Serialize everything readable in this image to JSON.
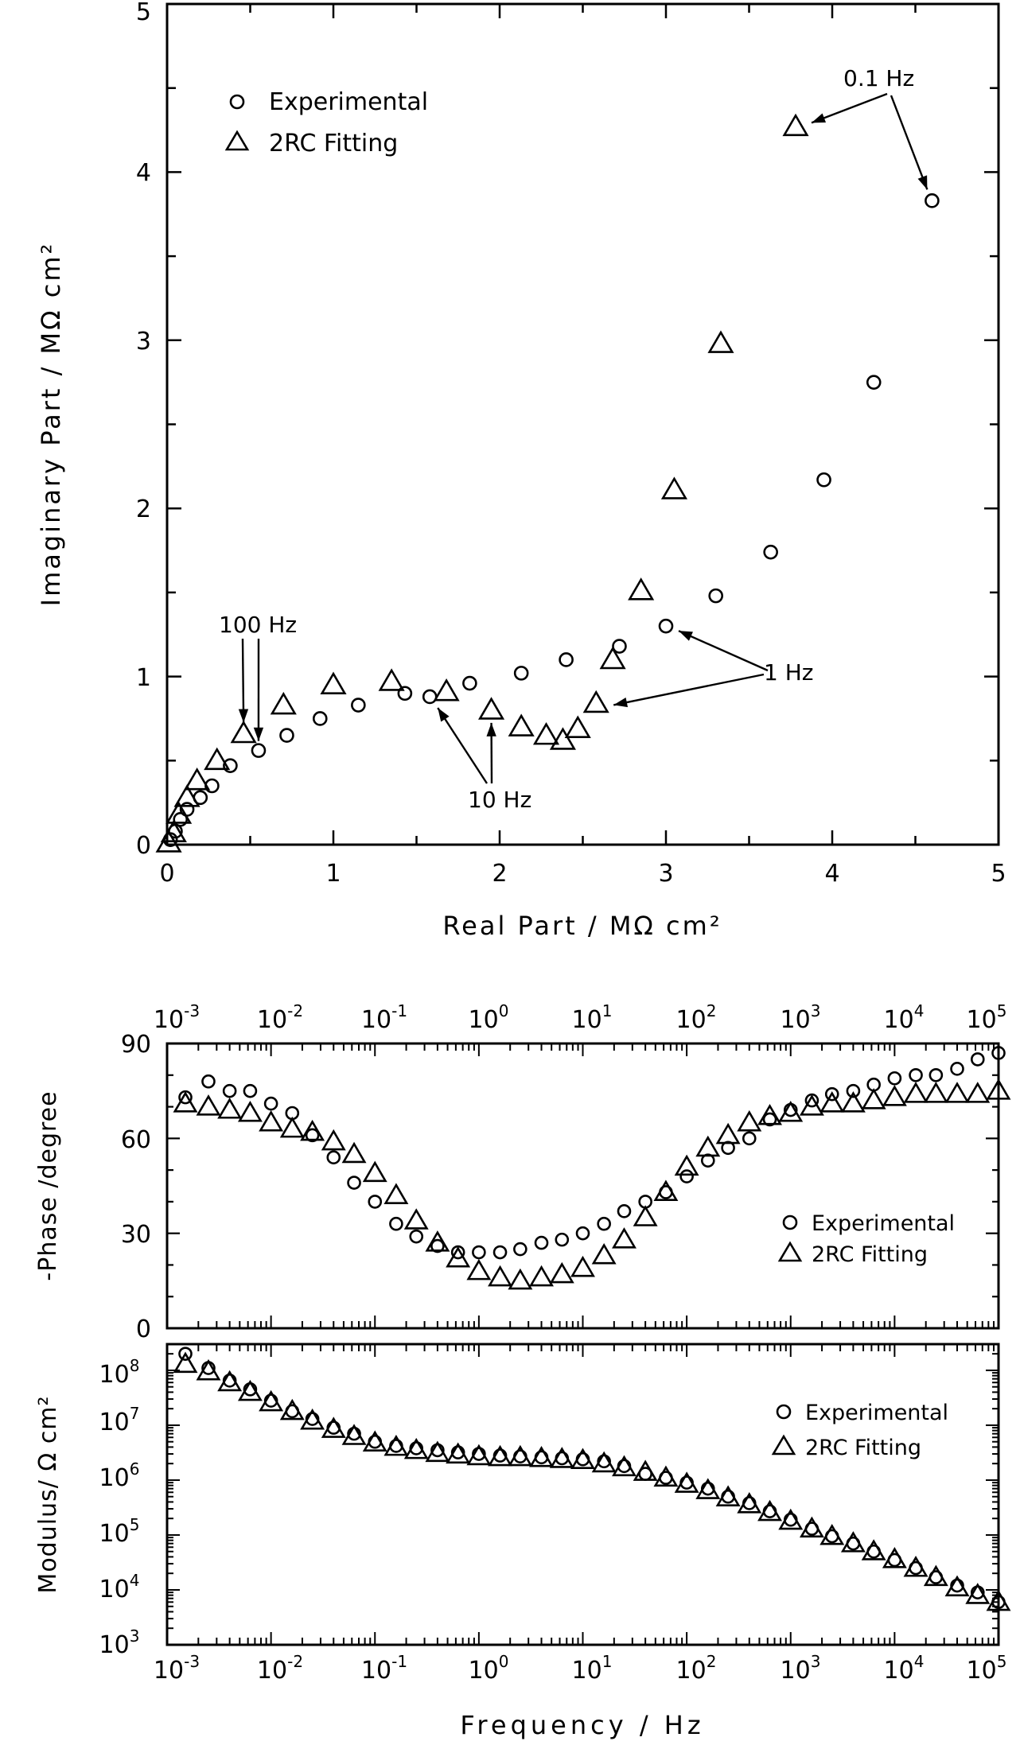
{
  "chart_data": [
    {
      "type": "scatter",
      "panel": "nyquist",
      "xlabel": "Real Part / MΩ cm²",
      "ylabel": "Imaginary Part / MΩ cm²",
      "xlim": [
        0,
        5
      ],
      "ylim": [
        0,
        5
      ],
      "x_ticks": [
        "0",
        "1",
        "2",
        "3",
        "4",
        "5"
      ],
      "y_ticks": [
        "0",
        "1",
        "2",
        "3",
        "4",
        "5"
      ],
      "legend_position": "top-left",
      "series": [
        {
          "name": "Experimental",
          "marker": "circle",
          "x": [
            0.02,
            0.05,
            0.08,
            0.12,
            0.2,
            0.27,
            0.38,
            0.55,
            0.72,
            0.92,
            1.15,
            1.43,
            1.58,
            1.82,
            2.13,
            2.4,
            2.72,
            3.0,
            3.3,
            3.63,
            3.95,
            4.25,
            4.6
          ],
          "y": [
            0.03,
            0.08,
            0.15,
            0.21,
            0.28,
            0.35,
            0.47,
            0.56,
            0.65,
            0.75,
            0.83,
            0.9,
            0.88,
            0.96,
            1.02,
            1.1,
            1.18,
            1.3,
            1.48,
            1.74,
            2.17,
            2.75,
            3.83
          ]
        },
        {
          "name": "2RC Fitting",
          "marker": "triangle",
          "x": [
            0.01,
            0.04,
            0.07,
            0.12,
            0.18,
            0.3,
            0.46,
            0.7,
            1.0,
            1.35,
            1.68,
            1.95,
            2.13,
            2.28,
            2.38,
            2.47,
            2.58,
            2.68,
            2.85,
            3.05,
            3.33,
            3.78
          ],
          "y": [
            0.01,
            0.07,
            0.18,
            0.28,
            0.38,
            0.5,
            0.66,
            0.83,
            0.95,
            0.97,
            0.91,
            0.8,
            0.7,
            0.65,
            0.62,
            0.69,
            0.84,
            1.1,
            1.51,
            2.11,
            2.98,
            4.27
          ]
        }
      ],
      "annotations": [
        "0.1 Hz",
        "100 Hz",
        "1 Hz",
        "10 Hz"
      ]
    },
    {
      "type": "scatter",
      "panel": "bode-phase",
      "ylabel": "-Phase /degree",
      "x_scale": "log",
      "xlim": [
        0.001,
        100000
      ],
      "ylim": [
        0,
        90
      ],
      "x_ticks": [
        "10",
        "10",
        "10",
        "10",
        "10",
        "10",
        "10",
        "10",
        "10"
      ],
      "x_tick_exponents": [
        "-3",
        "-2",
        "-1",
        "0",
        "1",
        "2",
        "3",
        "4",
        "5"
      ],
      "y_ticks": [
        "0",
        "30",
        "60",
        "90"
      ],
      "legend_position": "right",
      "series": [
        {
          "name": "Experimental",
          "marker": "circle",
          "x": [
            0.0015,
            0.0025,
            0.004,
            0.0063,
            0.01,
            0.016,
            0.025,
            0.04,
            0.063,
            0.1,
            0.16,
            0.25,
            0.4,
            0.63,
            1,
            1.6,
            2.5,
            4,
            6.3,
            10,
            16,
            25,
            40,
            63,
            100,
            160,
            250,
            400,
            630,
            1000,
            1600,
            2500,
            4000,
            6300,
            10000,
            16000,
            25000,
            40000,
            63000,
            100000
          ],
          "y": [
            73,
            78,
            75,
            75,
            71,
            68,
            61,
            54,
            46,
            40,
            33,
            29,
            26,
            24,
            24,
            24,
            25,
            27,
            28,
            30,
            33,
            37,
            40,
            43,
            48,
            53,
            57,
            60,
            66,
            69,
            72,
            74,
            75,
            77,
            79,
            80,
            80,
            82,
            85,
            87
          ]
        },
        {
          "name": "2RC Fitting",
          "marker": "triangle",
          "x": [
            0.0015,
            0.0025,
            0.004,
            0.0063,
            0.01,
            0.016,
            0.025,
            0.04,
            0.063,
            0.1,
            0.16,
            0.25,
            0.4,
            0.63,
            1,
            1.6,
            2.5,
            4,
            6.3,
            10,
            16,
            25,
            40,
            63,
            100,
            160,
            250,
            400,
            630,
            1000,
            1600,
            2500,
            4000,
            6300,
            10000,
            16000,
            25000,
            40000,
            63000,
            100000
          ],
          "y": [
            71,
            70,
            69,
            68,
            65,
            63,
            62,
            59,
            55,
            49,
            42,
            34,
            27,
            22,
            18,
            16,
            15,
            16,
            17,
            19,
            23,
            28,
            35,
            43,
            51,
            57,
            61,
            65,
            67,
            68,
            70,
            71,
            71,
            72,
            73,
            74,
            74,
            74,
            74,
            75
          ]
        }
      ]
    },
    {
      "type": "scatter",
      "panel": "bode-modulus",
      "xlabel": "Frequency / Hz",
      "ylabel": "Modulus/ Ω cm²",
      "x_scale": "log",
      "y_scale": "log",
      "xlim": [
        0.001,
        100000
      ],
      "ylim": [
        1000,
        300000000
      ],
      "x_ticks": [
        "10",
        "10",
        "10",
        "10",
        "10",
        "10",
        "10",
        "10",
        "10"
      ],
      "x_tick_exponents": [
        "-3",
        "-2",
        "-1",
        "0",
        "1",
        "2",
        "3",
        "4",
        "5"
      ],
      "y_ticks": [
        "10",
        "10",
        "10",
        "10",
        "10",
        "10"
      ],
      "y_tick_exponents": [
        "3",
        "4",
        "5",
        "6",
        "7",
        "8"
      ],
      "legend_position": "right",
      "series": [
        {
          "name": "Experimental",
          "marker": "circle",
          "x": [
            0.0015,
            0.0025,
            0.004,
            0.0063,
            0.01,
            0.016,
            0.025,
            0.04,
            0.063,
            0.1,
            0.16,
            0.25,
            0.4,
            0.63,
            1,
            1.6,
            2.5,
            4,
            6.3,
            10,
            16,
            25,
            40,
            63,
            100,
            160,
            250,
            400,
            630,
            1000,
            1600,
            2500,
            4000,
            6300,
            10000,
            16000,
            25000,
            40000,
            63000,
            100000
          ],
          "y": [
            200000000,
            110000000,
            65000000,
            45000000,
            28000000,
            18000000,
            13000000,
            9000000,
            7000000,
            5000000,
            4200000,
            3800000,
            3500000,
            3200000,
            3000000,
            2800000,
            2700000,
            2600000,
            2500000,
            2400000,
            2200000,
            1800000,
            1300000,
            1100000,
            900000,
            700000,
            500000,
            380000,
            270000,
            190000,
            130000,
            95000,
            70000,
            50000,
            35000,
            25000,
            17000,
            12000,
            9000,
            6000
          ]
        },
        {
          "name": "2RC Fitting",
          "marker": "triangle",
          "x": [
            0.0015,
            0.0025,
            0.004,
            0.0063,
            0.01,
            0.016,
            0.025,
            0.04,
            0.063,
            0.1,
            0.16,
            0.25,
            0.4,
            0.63,
            1,
            1.6,
            2.5,
            4,
            6.3,
            10,
            16,
            25,
            40,
            63,
            100,
            160,
            250,
            400,
            630,
            1000,
            1600,
            2500,
            4000,
            6300,
            10000,
            16000,
            25000,
            40000,
            63000,
            100000
          ],
          "y": [
            130000000,
            95000000,
            60000000,
            40000000,
            26000000,
            18000000,
            12000000,
            8500000,
            6300000,
            4800000,
            4000000,
            3500000,
            3100000,
            2900000,
            2700000,
            2600000,
            2600000,
            2500000,
            2400000,
            2300000,
            2000000,
            1700000,
            1400000,
            1100000,
            850000,
            650000,
            480000,
            360000,
            260000,
            180000,
            130000,
            95000,
            70000,
            50000,
            36000,
            25000,
            17000,
            11000,
            8000,
            6000
          ]
        }
      ]
    }
  ]
}
